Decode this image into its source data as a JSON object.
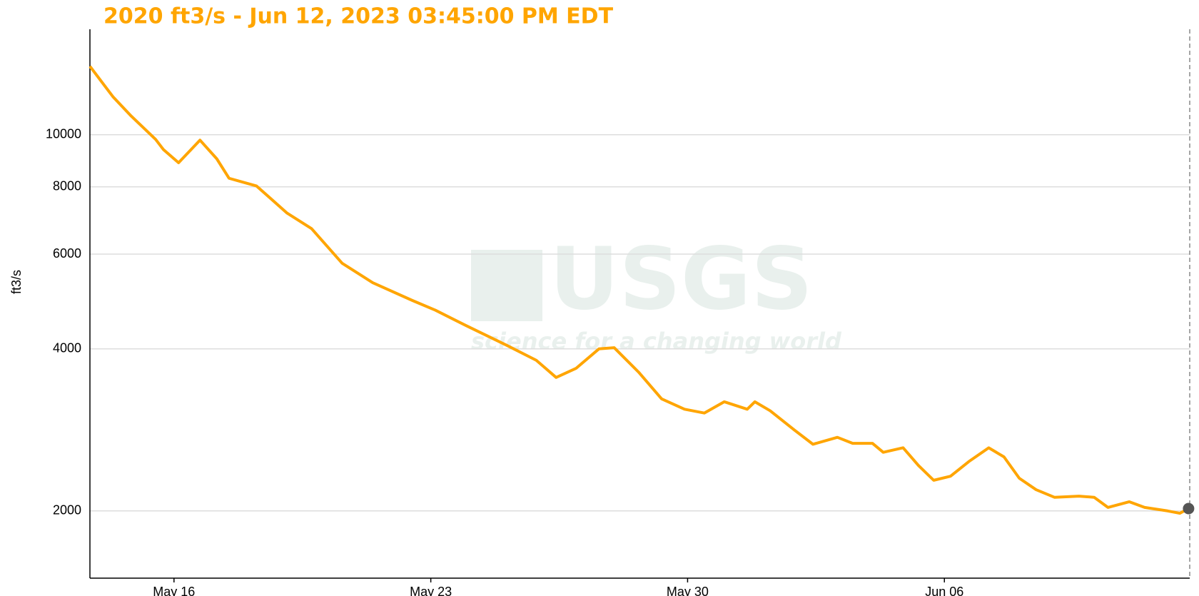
{
  "chart_data": {
    "type": "line",
    "title": "2020 ft3/s - Jun 12, 2023 03:45:00 PM EDT",
    "y_label": "ft3/s",
    "watermark": {
      "logo": "USGS",
      "tagline": "science for a changing world"
    },
    "log_scale": true,
    "grid": true,
    "xlim": [
      "2023-05-13T17:00",
      "2023-06-12T16:30"
    ],
    "xticks": [
      {
        "value": "2023-05-16T00:00",
        "label": "May 16"
      },
      {
        "value": "2023-05-23T00:00",
        "label": "May 23"
      },
      {
        "value": "2023-05-30T00:00",
        "label": "May 30"
      },
      {
        "value": "2023-06-06T00:00",
        "label": "Jun 06"
      }
    ],
    "ylim": [
      1500,
      15700
    ],
    "yticks": [
      2000,
      4000,
      6000,
      8000,
      10000
    ],
    "x": [
      "2023-05-13T17:00",
      "2023-05-14T08:00",
      "2023-05-14T20:00",
      "2023-05-15T12:00",
      "2023-05-15T17:00",
      "2023-05-16T03:00",
      "2023-05-16T17:00",
      "2023-05-17T04:00",
      "2023-05-17T12:00",
      "2023-05-18T06:00",
      "2023-05-19T02:00",
      "2023-05-19T18:00",
      "2023-05-20T14:00",
      "2023-05-21T10:00",
      "2023-05-22T12:00",
      "2023-05-23T03:00",
      "2023-05-23T23:00",
      "2023-05-25T01:00",
      "2023-05-25T21:00",
      "2023-05-26T10:00",
      "2023-05-26T23:00",
      "2023-05-27T14:00",
      "2023-05-28T00:00",
      "2023-05-28T16:00",
      "2023-05-29T07:00",
      "2023-05-29T22:00",
      "2023-05-30T11:00",
      "2023-05-31T00:00",
      "2023-05-31T15:00",
      "2023-05-31T20:00",
      "2023-06-01T06:00",
      "2023-06-01T22:00",
      "2023-06-02T10:00",
      "2023-06-03T02:00",
      "2023-06-03T12:00",
      "2023-06-04T01:00",
      "2023-06-04T08:00",
      "2023-06-04T21:00",
      "2023-06-05T07:00",
      "2023-06-05T17:00",
      "2023-06-06T04:00",
      "2023-06-06T16:00",
      "2023-06-07T05:00",
      "2023-06-07T15:00",
      "2023-06-08T01:00",
      "2023-06-08T12:00",
      "2023-06-09T00:00",
      "2023-06-09T16:00",
      "2023-06-10T02:00",
      "2023-06-10T11:00",
      "2023-06-11T01:00",
      "2023-06-11T11:00",
      "2023-06-12T02:00",
      "2023-06-12T10:00",
      "2023-06-12T15:45"
    ],
    "series": [
      {
        "name": "ft3/s",
        "color": "#ffa500",
        "values": [
          13400,
          11770,
          10830,
          9800,
          9390,
          8870,
          9770,
          9020,
          8300,
          8030,
          7150,
          6690,
          5770,
          5310,
          4920,
          4720,
          4420,
          4070,
          3810,
          3540,
          3680,
          4000,
          4020,
          3620,
          3230,
          3090,
          3040,
          3190,
          3090,
          3190,
          3070,
          2825,
          2660,
          2740,
          2670,
          2670,
          2570,
          2620,
          2430,
          2280,
          2320,
          2470,
          2620,
          2520,
          2300,
          2190,
          2120,
          2130,
          2120,
          2030,
          2080,
          2030,
          2000,
          1980,
          2020
        ]
      }
    ]
  }
}
